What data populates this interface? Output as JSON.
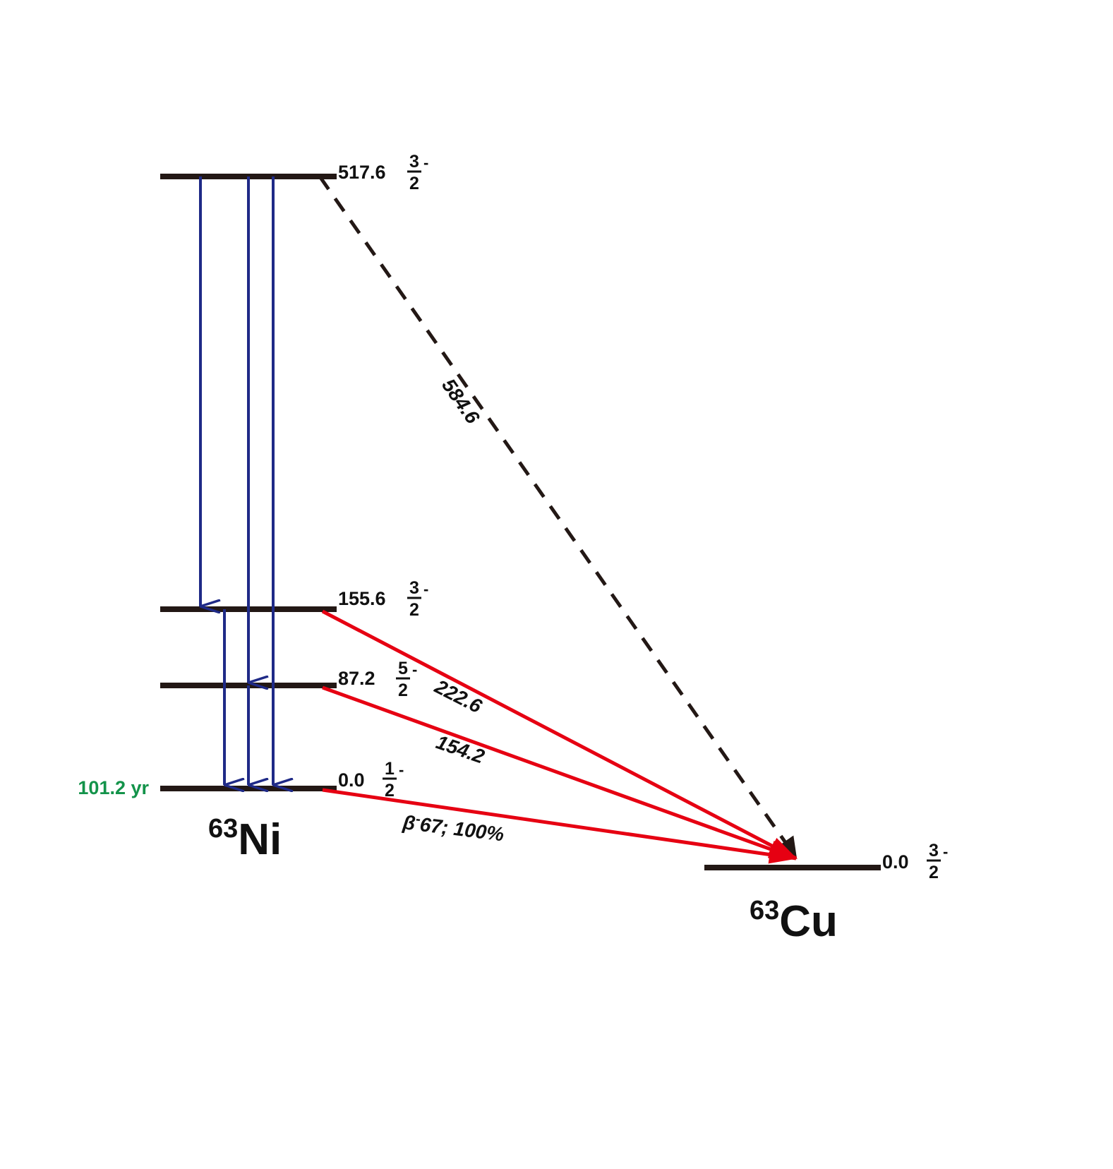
{
  "colors": {
    "level": "#231815",
    "gamma": "#1f2a87",
    "beta": "#e60012",
    "dashed": "#231815",
    "halflife": "#13934a"
  },
  "parent": {
    "mass_number": "63",
    "symbol": "Ni",
    "half_life": "101.2 yr",
    "levels": [
      {
        "energy": "517.6",
        "spin_num": "3",
        "spin_den": "2",
        "parity": "-"
      },
      {
        "energy": "155.6",
        "spin_num": "3",
        "spin_den": "2",
        "parity": "-"
      },
      {
        "energy": "87.2",
        "spin_num": "5",
        "spin_den": "2",
        "parity": "-"
      },
      {
        "energy": "0.0",
        "spin_num": "1",
        "spin_den": "2",
        "parity": "-"
      }
    ]
  },
  "daughter": {
    "mass_number": "63",
    "symbol": "Cu",
    "level": {
      "energy": "0.0",
      "spin_num": "3",
      "spin_den": "2",
      "parity": "-"
    }
  },
  "transitions": {
    "dashed": {
      "label": "584.6"
    },
    "beta_222": {
      "label": "222.6"
    },
    "beta_154": {
      "label": "154.2"
    },
    "beta_67": {
      "symbol": "β",
      "sup": "-",
      "label": "67; 100%"
    }
  }
}
